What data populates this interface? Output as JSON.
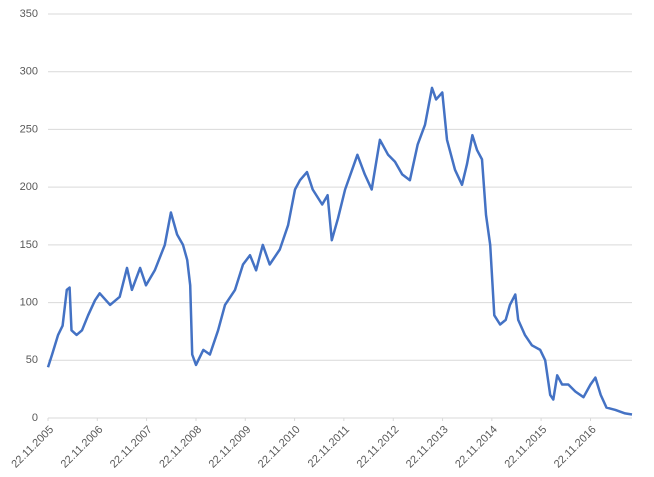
{
  "chart_data": {
    "type": "line",
    "color": "#4472c4",
    "grid": true,
    "x": [
      "22.11.2005",
      "22.12.2005",
      "05.02.2006",
      "10.03.2006",
      "10.04.2006",
      "01.05.2006",
      "15.05.2006",
      "22.06.2006",
      "01.08.2006",
      "15.09.2006",
      "05.11.2006",
      "10.12.2006",
      "25.02.2007",
      "07.05.2007",
      "30.06.2007",
      "05.08.2007",
      "05.10.2007",
      "18.11.2007",
      "22.01.2008",
      "05.04.2008",
      "20.05.2008",
      "05.07.2008",
      "18.08.2008",
      "18.09.2008",
      "10.10.2008",
      "25.10.2008",
      "22.11.2008",
      "15.01.2009",
      "05.03.2009",
      "05.05.2009",
      "25.06.2009",
      "07.09.2009",
      "05.11.2009",
      "27.12.2009",
      "10.02.2010",
      "01.04.2010",
      "22.05.2010",
      "05.08.2010",
      "05.10.2010",
      "25.11.2010",
      "01.01.2011",
      "22.02.2011",
      "05.04.2011",
      "15.06.2011",
      "25.07.2011",
      "25.08.2011",
      "10.10.2011",
      "01.12.2011",
      "22.01.2012",
      "01.03.2012",
      "25.04.2012",
      "15.06.2012",
      "15.08.2012",
      "15.10.2012",
      "05.12.2012",
      "27.01.2013",
      "25.03.2013",
      "22.05.2013",
      "15.07.2013",
      "05.09.2013",
      "05.10.2013",
      "20.11.2013",
      "25.12.2013",
      "22.02.2014",
      "15.04.2014",
      "22.05.2014",
      "01.07.2014",
      "05.08.2014",
      "10.09.2014",
      "10.10.2014",
      "10.11.2014",
      "10.12.2014",
      "22.01.2015",
      "05.03.2015",
      "05.04.2015",
      "15.05.2015",
      "05.06.2015",
      "25.07.2015",
      "15.09.2015",
      "15.11.2015",
      "22.12.2015",
      "28.01.2016",
      "20.02.2016",
      "20.03.2016",
      "25.04.2016",
      "10.06.2016",
      "01.08.2016",
      "01.10.2016",
      "22.11.2016",
      "28.12.2016",
      "05.02.2017",
      "20.03.2017",
      "25.05.2017",
      "05.08.2017",
      "25.09.2017"
    ],
    "values": [
      44,
      55,
      72,
      80,
      111,
      113,
      76,
      72,
      76,
      89,
      102,
      108,
      98,
      105,
      130,
      111,
      130,
      115,
      128,
      150,
      178,
      159,
      150,
      137,
      115,
      55,
      46,
      59,
      55,
      76,
      98,
      111,
      133,
      141,
      128,
      150,
      133,
      146,
      167,
      198,
      206,
      213,
      198,
      185,
      193,
      154,
      173,
      198,
      215,
      228,
      211,
      198,
      241,
      228,
      222,
      211,
      206,
      237,
      254,
      286,
      276,
      282,
      241,
      215,
      202,
      220,
      245,
      232,
      224,
      176,
      150,
      89,
      81,
      85,
      98,
      107,
      85,
      72,
      63,
      59,
      50,
      20,
      16,
      37,
      29,
      29,
      23,
      18,
      29,
      35,
      20,
      9,
      7,
      4,
      3
    ],
    "xlim": [
      "22.11.2005",
      "25.09.2017"
    ],
    "xticks": [
      "22.11.2005",
      "22.11.2006",
      "22.11.2007",
      "22.11.2008",
      "22.11.2009",
      "22.11.2010",
      "22.11.2011",
      "22.11.2012",
      "22.11.2013",
      "22.11.2014",
      "22.11.2015",
      "22.11.2016"
    ],
    "ylim": [
      0,
      350
    ],
    "yticks": [
      0,
      50,
      100,
      150,
      200,
      250,
      300,
      350
    ]
  }
}
